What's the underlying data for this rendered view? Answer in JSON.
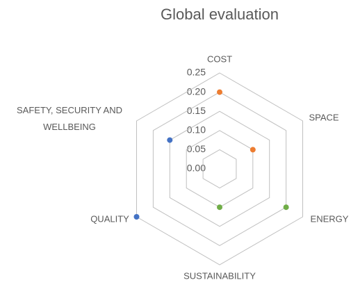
{
  "chart_data": {
    "type": "radar",
    "title": "Global evaluation",
    "categories": [
      "COST",
      "SPACE",
      "ENERGY",
      "SUSTAINABILITY",
      "QUALITY",
      "SAFETY, SECURITY AND WELLBEING"
    ],
    "series": [
      {
        "color": "#ED7D31",
        "values": [
          0.2,
          0.1,
          null,
          null,
          null,
          null
        ]
      },
      {
        "color": "#70AD47",
        "values": [
          null,
          null,
          0.2,
          0.1,
          null,
          null
        ]
      },
      {
        "color": "#4472C4",
        "values": [
          null,
          null,
          null,
          null,
          0.25,
          0.15
        ]
      }
    ],
    "ylim": [
      0,
      0.25
    ],
    "yticks": [
      {
        "value": 0,
        "label": "0.00"
      },
      {
        "value": 0.05,
        "label": "0.05"
      },
      {
        "value": 0.1,
        "label": "0.10"
      },
      {
        "value": 0.15,
        "label": "0.15"
      },
      {
        "value": 0.2,
        "label": "0.20"
      },
      {
        "value": 0.25,
        "label": "0.25"
      }
    ],
    "grid": true
  }
}
